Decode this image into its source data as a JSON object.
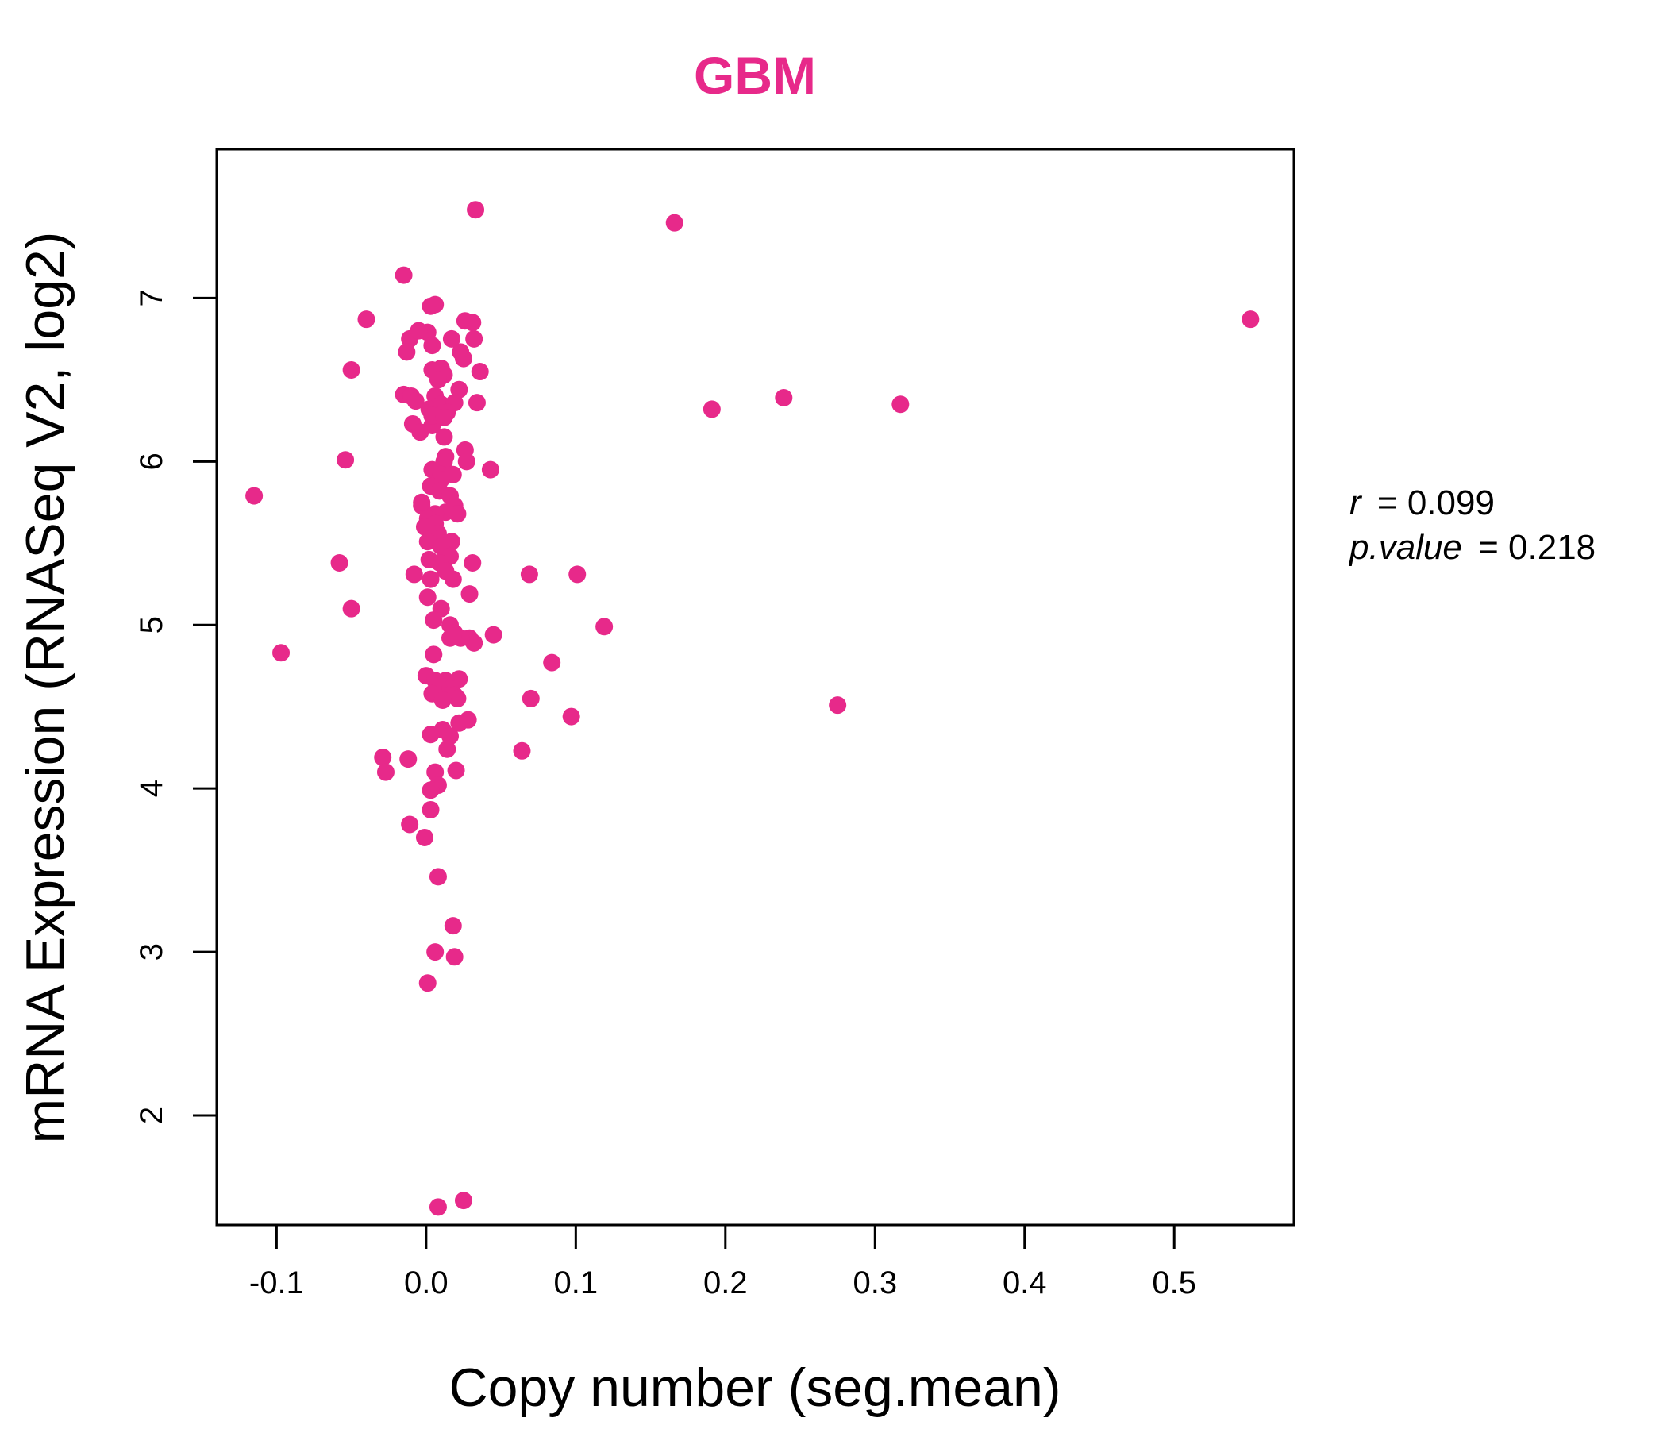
{
  "chart_data": {
    "type": "scatter",
    "title": "GBM",
    "xlabel": "Copy number (seg.mean)",
    "ylabel": "mRNA Expression (RNASeq V2, log2)",
    "xlim": [
      -0.14,
      0.58
    ],
    "ylim": [
      1.33,
      7.91
    ],
    "x_ticks": [
      -0.1,
      0.0,
      0.1,
      0.2,
      0.3,
      0.4,
      0.5
    ],
    "x_tick_labels": [
      "-0.1",
      "0.0",
      "0.1",
      "0.2",
      "0.3",
      "0.4",
      "0.5"
    ],
    "y_ticks": [
      2,
      3,
      4,
      5,
      6,
      7
    ],
    "y_tick_labels": [
      "2",
      "3",
      "4",
      "5",
      "6",
      "7"
    ],
    "grid": false,
    "legend": "none",
    "point_color": "#E7298A",
    "title_color": "#E7298A",
    "series": [
      {
        "x": [
          0.033,
          0.166,
          -0.015,
          0.003,
          0.006,
          -0.04,
          0.026,
          0.031,
          -0.011,
          0.017,
          0.032,
          0.001,
          -0.005,
          -0.013,
          0.004,
          0.023,
          0.01,
          0.025,
          -0.05,
          0.004,
          0.012,
          0.036,
          0.008,
          0.022,
          -0.015,
          -0.01,
          0.006,
          -0.007,
          0.01,
          0.019,
          0.034,
          0.002,
          0.014,
          -0.009,
          0.004,
          0.004,
          0.012,
          -0.004,
          0.012,
          0.026,
          0.013,
          -0.054,
          0.043,
          0.027,
          0.012,
          0.004,
          0.01,
          0.018,
          0.01,
          0.003,
          0.009,
          0.016,
          -0.003,
          0.019,
          -0.003,
          0.013,
          0.021,
          0.006,
          0.001,
          0.006,
          -0.001,
          0.008,
          0.004,
          0.001,
          0.017,
          0.01,
          0.016,
          0.031,
          0.002,
          0.009,
          0.013,
          -0.008,
          0.018,
          0.003,
          0.029,
          0.069,
          0.101,
          -0.058,
          -0.05,
          0.001,
          0.01,
          0.005,
          0.016,
          0.019,
          0.029,
          0.032,
          0.023,
          0.045,
          0.016,
          0.018,
          0.119,
          0.005,
          0.084,
          0.0,
          0.022,
          0.006,
          0.013,
          0.01,
          0.012,
          0.016,
          0.004,
          0.015,
          0.019,
          0.021,
          0.011,
          0.07,
          0.097,
          0.028,
          0.022,
          0.011,
          0.003,
          0.016,
          -0.097,
          0.014,
          0.064,
          -0.029,
          -0.012,
          0.006,
          0.02,
          -0.027,
          0.008,
          0.003,
          0.003,
          -0.011,
          -0.001,
          0.008,
          0.018,
          0.019,
          0.006,
          0.001,
          0.008,
          0.025,
          -0.115,
          0.191,
          0.239,
          0.317,
          0.275,
          0.551
        ],
        "y": [
          7.54,
          7.46,
          7.14,
          6.95,
          6.96,
          6.87,
          6.86,
          6.85,
          6.75,
          6.75,
          6.75,
          6.79,
          6.8,
          6.67,
          6.71,
          6.67,
          6.57,
          6.63,
          6.56,
          6.56,
          6.53,
          6.55,
          6.5,
          6.44,
          6.41,
          6.4,
          6.4,
          6.37,
          6.35,
          6.36,
          6.36,
          6.32,
          6.3,
          6.23,
          6.22,
          6.28,
          6.27,
          6.18,
          6.15,
          6.07,
          6.03,
          6.01,
          5.95,
          6.0,
          6.0,
          5.95,
          5.92,
          5.92,
          5.89,
          5.85,
          5.82,
          5.79,
          5.73,
          5.73,
          5.75,
          5.69,
          5.68,
          5.68,
          5.65,
          5.62,
          5.6,
          5.56,
          5.53,
          5.51,
          5.51,
          5.48,
          5.42,
          5.38,
          5.4,
          5.38,
          5.33,
          5.31,
          5.28,
          5.28,
          5.19,
          5.31,
          5.31,
          5.38,
          5.1,
          5.17,
          5.1,
          5.03,
          5.0,
          4.95,
          4.92,
          4.89,
          4.92,
          4.94,
          4.92,
          4.93,
          4.99,
          4.82,
          4.77,
          4.69,
          4.67,
          4.66,
          4.66,
          4.63,
          4.62,
          4.61,
          4.58,
          4.57,
          4.57,
          4.55,
          4.54,
          4.55,
          4.44,
          4.42,
          4.4,
          4.36,
          4.33,
          4.32,
          4.83,
          4.24,
          4.23,
          4.19,
          4.18,
          4.1,
          4.11,
          4.1,
          4.02,
          3.99,
          3.87,
          3.78,
          3.7,
          3.46,
          3.16,
          2.97,
          3.0,
          2.81,
          1.44,
          1.48,
          5.79,
          6.32,
          6.39,
          6.35,
          4.51,
          6.87
        ]
      }
    ],
    "stats": {
      "r_symbol": "r",
      "r_value": "0.099",
      "p_symbol": "p.value",
      "p_value": "0.218"
    }
  }
}
